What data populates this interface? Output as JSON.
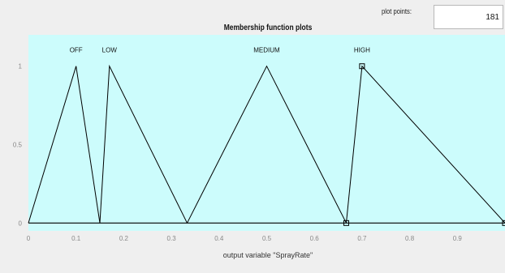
{
  "header": {
    "plot_points_label": "plot points:",
    "plot_points_value": "181",
    "title": "Membership function plots"
  },
  "chart_data": {
    "type": "line",
    "title": "Membership function plots",
    "xlabel": "output variable \"SprayRate\"",
    "ylabel": "",
    "xlim": [
      0,
      1
    ],
    "ylim": [
      -0.05,
      1.2
    ],
    "x_ticks": [
      0,
      0.1,
      0.2,
      0.3,
      0.4,
      0.5,
      0.6,
      0.7,
      0.8,
      0.9
    ],
    "x_tick_labels": [
      "0",
      "0.1",
      "0.2",
      "0.3",
      "0.4",
      "0.5",
      "0.6",
      "0.7",
      "0.8",
      "0.9"
    ],
    "y_ticks": [
      0,
      0.5,
      1
    ],
    "y_tick_labels": [
      "0",
      "0.5",
      "1"
    ],
    "grid": false,
    "background": "#ccfcfc",
    "line_color": "#000000",
    "series": [
      {
        "name": "OFF",
        "x": [
          0,
          0.1,
          0.15
        ],
        "y": [
          0,
          1,
          0
        ]
      },
      {
        "name": "LOW",
        "x": [
          0.15,
          0.17,
          0.333
        ],
        "y": [
          0,
          1,
          0
        ]
      },
      {
        "name": "MEDIUM",
        "x": [
          0.333,
          0.5,
          0.667
        ],
        "y": [
          0,
          1,
          0
        ]
      },
      {
        "name": "HIGH",
        "x": [
          0.667,
          0.7,
          1
        ],
        "y": [
          0,
          1,
          0
        ]
      }
    ],
    "selected_series": "HIGH"
  }
}
